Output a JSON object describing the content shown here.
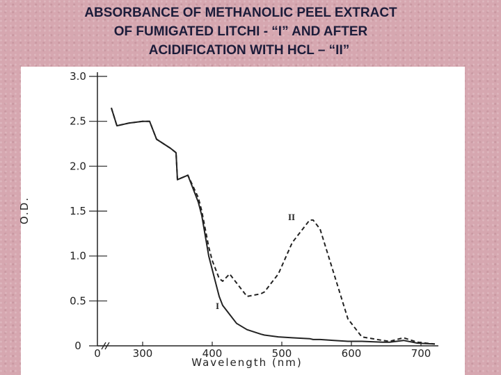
{
  "chart_data": {
    "type": "line",
    "title_lines": [
      "ABSORBANCE OF METHANOLIC PEEL EXTRACT",
      "OF FUMIGATED LITCHI - “I” AND AFTER",
      "ACIDIFICATION WITH HCL – “II”"
    ],
    "x_label": "Wavelength (nm)",
    "y_label": "O.D.",
    "x_origin_label": "0",
    "x": [
      255,
      263,
      280,
      300,
      310,
      320,
      340,
      348,
      350,
      365,
      380,
      385,
      395,
      400,
      410,
      415,
      425,
      435,
      450,
      470,
      475,
      495,
      515,
      540,
      545,
      555,
      575,
      595,
      615,
      645,
      655,
      675,
      695,
      720
    ],
    "series": [
      {
        "name": "I",
        "color": "#222222",
        "dash": false,
        "values": [
          2.65,
          2.45,
          2.48,
          2.5,
          2.5,
          2.3,
          2.2,
          2.15,
          1.85,
          1.9,
          1.6,
          1.45,
          1.0,
          0.85,
          0.55,
          0.45,
          0.35,
          0.25,
          0.18,
          0.13,
          0.12,
          0.1,
          0.09,
          0.08,
          0.07,
          0.07,
          0.06,
          0.05,
          0.05,
          0.04,
          0.04,
          0.06,
          0.03,
          0.02
        ]
      },
      {
        "name": "II",
        "color": "#222222",
        "dash": true,
        "values": [
          2.65,
          2.45,
          2.48,
          2.5,
          2.5,
          2.3,
          2.2,
          2.15,
          1.85,
          1.9,
          1.65,
          1.5,
          1.1,
          0.95,
          0.75,
          0.72,
          0.8,
          0.7,
          0.55,
          0.58,
          0.6,
          0.8,
          1.15,
          1.4,
          1.4,
          1.3,
          0.8,
          0.3,
          0.1,
          0.06,
          0.05,
          0.09,
          0.04,
          0.02
        ]
      }
    ],
    "xlim": [
      235,
      725
    ],
    "xticks": [
      300,
      400,
      500,
      600,
      700
    ],
    "ylim": [
      0,
      3
    ],
    "yticks": [
      0,
      0.5,
      {
        "value": 1,
        "label": "1.0"
      },
      1.5,
      {
        "value": 2,
        "label": "2.0"
      },
      2.5,
      {
        "value": 3,
        "label": "3.0"
      }
    ]
  }
}
